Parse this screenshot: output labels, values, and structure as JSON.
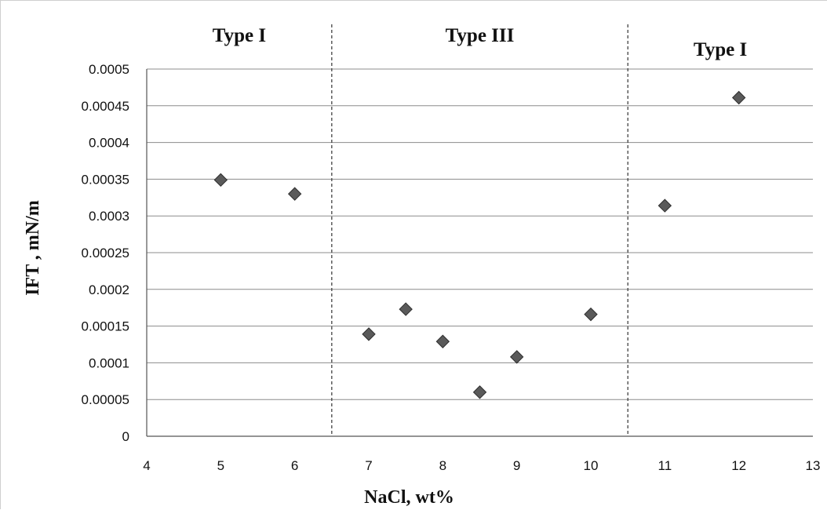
{
  "chart_data": {
    "type": "scatter",
    "title": "",
    "xlabel": "NaCl, wt%",
    "ylabel": "IFT , mN/m",
    "xlim": [
      4,
      13
    ],
    "ylim": [
      0,
      0.0005
    ],
    "x_ticks": [
      "4",
      "5",
      "6",
      "7",
      "8",
      "9",
      "10",
      "11",
      "12",
      "13"
    ],
    "y_ticks": [
      "0",
      "0.00005",
      "0.0001",
      "0.00015",
      "0.0002",
      "0.00025",
      "0.0003",
      "0.00035",
      "0.0004",
      "0.00045",
      "0.0005"
    ],
    "grid": "horizontal",
    "series": [
      {
        "x": [
          5,
          6,
          7,
          7.5,
          8,
          8.5,
          9,
          10,
          11,
          12
        ],
        "y": [
          0.000349,
          0.00033,
          0.000139,
          0.000173,
          0.000129,
          6e-05,
          0.000108,
          0.000166,
          0.000314,
          0.000461
        ],
        "marker": "diamond",
        "color": "#5a5a5a"
      }
    ],
    "regions": [
      {
        "label": "Type I",
        "x_from": 4,
        "x_to": 6.5
      },
      {
        "label": "Type III",
        "x_from": 6.5,
        "x_to": 10.5
      },
      {
        "label": "Type I",
        "x_from": 10.5,
        "x_to": 13
      }
    ],
    "region_dividers_x": [
      6.5,
      10.5
    ]
  }
}
